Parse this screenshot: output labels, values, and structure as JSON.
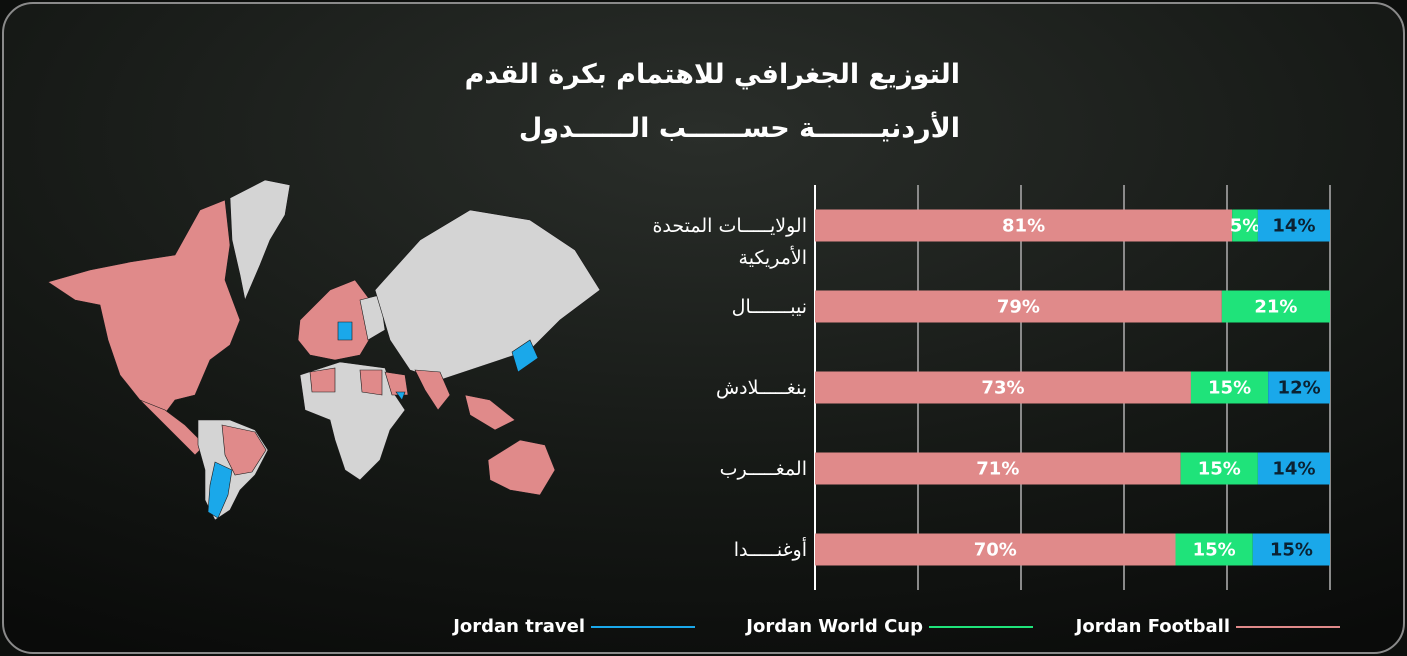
{
  "chart_data": {
    "type": "bar",
    "orientation": "horizontal",
    "stacked": true,
    "title": "التوزيع الجغرافي للاهتمام بكرة القدم الأردنيـــــــة حســــــب الــــــدول",
    "categories": [
      "الولايـــــات المتحدة الأمريكية",
      "نيبـــــــال",
      "بنغـــــلادش",
      "المغـــــرب",
      "أوغنـــــدا"
    ],
    "series": [
      {
        "name": "Jordan Football",
        "color": "#e08a8a",
        "values": [
          81,
          79,
          73,
          71,
          70
        ],
        "value_labels": [
          "81%",
          "79%",
          "73%",
          "71%",
          "70%"
        ]
      },
      {
        "name": "Jordan World Cup",
        "color": "#1fe37a",
        "values": [
          5,
          21,
          15,
          15,
          15
        ],
        "value_labels": [
          "5%",
          "21%",
          "15%",
          "15%",
          "15%"
        ]
      },
      {
        "name": "Jordan travel",
        "color": "#1aa8ea",
        "values": [
          14,
          null,
          12,
          14,
          15
        ],
        "value_labels": [
          "14%",
          null,
          "12%",
          "14%",
          "15%"
        ]
      }
    ],
    "xlim": [
      0,
      100
    ],
    "xticks": [
      0,
      20,
      40,
      60,
      80,
      100
    ],
    "grid": true
  }
}
